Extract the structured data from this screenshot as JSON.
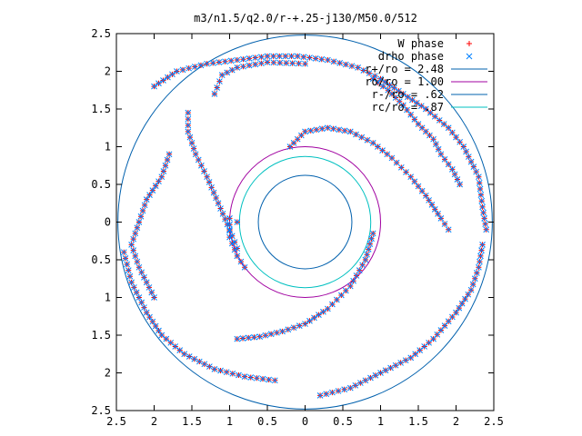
{
  "chart_data": {
    "type": "scatter",
    "title": "m3/n1.5/q2.0/r-+.25-j130/M50.0/512",
    "xlim": [
      -2.5,
      2.5
    ],
    "ylim": [
      -2.5,
      2.5
    ],
    "xticks": [
      -2.5,
      -2,
      -1.5,
      -1,
      -0.5,
      0,
      0.5,
      1,
      1.5,
      2,
      2.5
    ],
    "yticks": [
      -2.5,
      -2,
      -1.5,
      -1,
      -0.5,
      0,
      0.5,
      1,
      1.5,
      2,
      2.5
    ],
    "xtick_labels": [
      "2.5",
      "2",
      "1.5",
      "1",
      "0.5",
      "0",
      "0.5",
      "1",
      "1.5",
      "2",
      "2.5"
    ],
    "ytick_labels": [
      "2.5",
      "2",
      "1.5",
      "1",
      "0.5",
      "0",
      "0.5",
      "1",
      "1.5",
      "2",
      "2.5"
    ],
    "grid": false,
    "legend_position": "top-right",
    "series": [
      {
        "name": "W phase",
        "marker": "plus",
        "color": "#ff0000",
        "arms": [
          [
            [
              -0.2,
              1.0
            ],
            [
              0.0,
              1.2
            ],
            [
              0.3,
              1.25
            ],
            [
              0.6,
              1.2
            ],
            [
              0.9,
              1.05
            ],
            [
              1.15,
              0.85
            ],
            [
              1.4,
              0.6
            ],
            [
              1.6,
              0.35
            ],
            [
              1.8,
              0.05
            ],
            [
              1.9,
              -0.1
            ]
          ],
          [
            [
              0.9,
              -0.15
            ],
            [
              0.8,
              -0.5
            ],
            [
              0.6,
              -0.85
            ],
            [
              0.3,
              -1.15
            ],
            [
              0.0,
              -1.35
            ],
            [
              -0.3,
              -1.45
            ],
            [
              -0.6,
              -1.52
            ],
            [
              -0.9,
              -1.55
            ]
          ],
          [
            [
              -0.9,
              -0.35
            ],
            [
              -1.0,
              -0.1
            ],
            [
              -1.15,
              0.25
            ],
            [
              -1.3,
              0.6
            ],
            [
              -1.45,
              0.9
            ],
            [
              -1.55,
              1.2
            ],
            [
              -1.55,
              1.45
            ]
          ],
          [
            [
              -0.9,
              0.0
            ],
            [
              -1.0,
              0.05
            ],
            [
              -1.0,
              -0.2
            ],
            [
              -0.9,
              -0.45
            ],
            [
              -0.8,
              -0.6
            ]
          ],
          [
            [
              -2.0,
              1.8
            ],
            [
              -1.7,
              2.0
            ],
            [
              -1.3,
              2.1
            ],
            [
              -0.9,
              2.15
            ],
            [
              -0.5,
              2.2
            ],
            [
              -0.1,
              2.2
            ],
            [
              0.3,
              2.15
            ],
            [
              0.7,
              2.05
            ],
            [
              1.0,
              1.9
            ],
            [
              1.3,
              1.7
            ],
            [
              1.6,
              1.5
            ],
            [
              1.9,
              1.25
            ],
            [
              2.1,
              1.0
            ],
            [
              2.3,
              0.6
            ],
            [
              2.35,
              0.2
            ],
            [
              2.4,
              -0.1
            ]
          ],
          [
            [
              -0.4,
              -2.1
            ],
            [
              -0.8,
              -2.05
            ],
            [
              -1.2,
              -1.95
            ],
            [
              -1.6,
              -1.75
            ],
            [
              -1.9,
              -1.5
            ],
            [
              -2.1,
              -1.2
            ],
            [
              -2.3,
              -0.8
            ],
            [
              -2.4,
              -0.4
            ]
          ],
          [
            [
              0.2,
              -2.3
            ],
            [
              0.6,
              -2.2
            ],
            [
              1.0,
              -2.0
            ],
            [
              1.4,
              -1.8
            ],
            [
              1.7,
              -1.55
            ],
            [
              2.0,
              -1.2
            ],
            [
              2.2,
              -0.9
            ],
            [
              2.3,
              -0.6
            ],
            [
              2.35,
              -0.3
            ]
          ],
          [
            [
              -1.8,
              0.9
            ],
            [
              -1.9,
              0.6
            ],
            [
              -2.1,
              0.3
            ],
            [
              -2.2,
              0.0
            ],
            [
              -2.3,
              -0.3
            ],
            [
              -2.2,
              -0.6
            ],
            [
              -2.1,
              -0.8
            ],
            [
              -2.0,
              -1.0
            ]
          ],
          [
            [
              0.9,
              1.9
            ],
            [
              1.1,
              1.75
            ],
            [
              1.3,
              1.55
            ],
            [
              1.5,
              1.3
            ],
            [
              1.7,
              1.1
            ],
            [
              1.8,
              0.9
            ],
            [
              1.95,
              0.7
            ],
            [
              2.05,
              0.5
            ]
          ],
          [
            [
              -1.2,
              1.7
            ],
            [
              -1.1,
              1.95
            ],
            [
              -0.9,
              2.05
            ],
            [
              -0.5,
              2.12
            ],
            [
              0.0,
              2.1
            ]
          ]
        ]
      },
      {
        "name": "drho phase",
        "marker": "cross",
        "color": "#0080ff",
        "arms": [
          [
            [
              -0.2,
              1.0
            ],
            [
              0.0,
              1.2
            ],
            [
              0.3,
              1.25
            ],
            [
              0.6,
              1.2
            ],
            [
              0.9,
              1.05
            ],
            [
              1.15,
              0.85
            ],
            [
              1.4,
              0.6
            ],
            [
              1.6,
              0.35
            ],
            [
              1.8,
              0.05
            ],
            [
              1.9,
              -0.1
            ]
          ],
          [
            [
              0.9,
              -0.15
            ],
            [
              0.8,
              -0.5
            ],
            [
              0.6,
              -0.85
            ],
            [
              0.3,
              -1.15
            ],
            [
              0.0,
              -1.35
            ],
            [
              -0.3,
              -1.45
            ],
            [
              -0.6,
              -1.52
            ],
            [
              -0.9,
              -1.55
            ]
          ],
          [
            [
              -0.9,
              -0.35
            ],
            [
              -1.0,
              -0.1
            ],
            [
              -1.15,
              0.25
            ],
            [
              -1.3,
              0.6
            ],
            [
              -1.45,
              0.9
            ],
            [
              -1.55,
              1.2
            ],
            [
              -1.55,
              1.45
            ]
          ],
          [
            [
              -0.9,
              0.0
            ],
            [
              -1.0,
              0.05
            ],
            [
              -1.0,
              -0.2
            ],
            [
              -0.9,
              -0.45
            ],
            [
              -0.8,
              -0.6
            ]
          ],
          [
            [
              -2.0,
              1.8
            ],
            [
              -1.7,
              2.0
            ],
            [
              -1.3,
              2.1
            ],
            [
              -0.9,
              2.15
            ],
            [
              -0.5,
              2.2
            ],
            [
              -0.1,
              2.2
            ],
            [
              0.3,
              2.15
            ],
            [
              0.7,
              2.05
            ],
            [
              1.0,
              1.9
            ],
            [
              1.3,
              1.7
            ],
            [
              1.6,
              1.5
            ],
            [
              1.9,
              1.25
            ],
            [
              2.1,
              1.0
            ],
            [
              2.3,
              0.6
            ],
            [
              2.35,
              0.2
            ],
            [
              2.4,
              -0.1
            ]
          ],
          [
            [
              -0.4,
              -2.1
            ],
            [
              -0.8,
              -2.05
            ],
            [
              -1.2,
              -1.95
            ],
            [
              -1.6,
              -1.75
            ],
            [
              -1.9,
              -1.5
            ],
            [
              -2.1,
              -1.2
            ],
            [
              -2.3,
              -0.8
            ],
            [
              -2.4,
              -0.4
            ]
          ],
          [
            [
              0.2,
              -2.3
            ],
            [
              0.6,
              -2.2
            ],
            [
              1.0,
              -2.0
            ],
            [
              1.4,
              -1.8
            ],
            [
              1.7,
              -1.55
            ],
            [
              2.0,
              -1.2
            ],
            [
              2.2,
              -0.9
            ],
            [
              2.3,
              -0.6
            ],
            [
              2.35,
              -0.3
            ]
          ],
          [
            [
              -1.8,
              0.9
            ],
            [
              -1.9,
              0.6
            ],
            [
              -2.1,
              0.3
            ],
            [
              -2.2,
              0.0
            ],
            [
              -2.3,
              -0.3
            ],
            [
              -2.2,
              -0.6
            ],
            [
              -2.1,
              -0.8
            ],
            [
              -2.0,
              -1.0
            ]
          ],
          [
            [
              0.9,
              1.9
            ],
            [
              1.1,
              1.75
            ],
            [
              1.3,
              1.55
            ],
            [
              1.5,
              1.3
            ],
            [
              1.7,
              1.1
            ],
            [
              1.8,
              0.9
            ],
            [
              1.95,
              0.7
            ],
            [
              2.05,
              0.5
            ]
          ],
          [
            [
              -1.2,
              1.7
            ],
            [
              -1.1,
              1.95
            ],
            [
              -0.9,
              2.05
            ],
            [
              -0.5,
              2.12
            ],
            [
              0.0,
              2.1
            ]
          ]
        ]
      }
    ],
    "circles": [
      {
        "name": "r+/ro = 2.48",
        "radius": 2.48,
        "color": "#0060ad"
      },
      {
        "name": "ro/ro = 1.00",
        "radius": 1.0,
        "color": "#a000a0"
      },
      {
        "name": "r-/ro = .62",
        "radius": 0.62,
        "color": "#0060ad"
      },
      {
        "name": "rc/ro = .87",
        "radius": 0.87,
        "color": "#00c0c0"
      }
    ]
  }
}
